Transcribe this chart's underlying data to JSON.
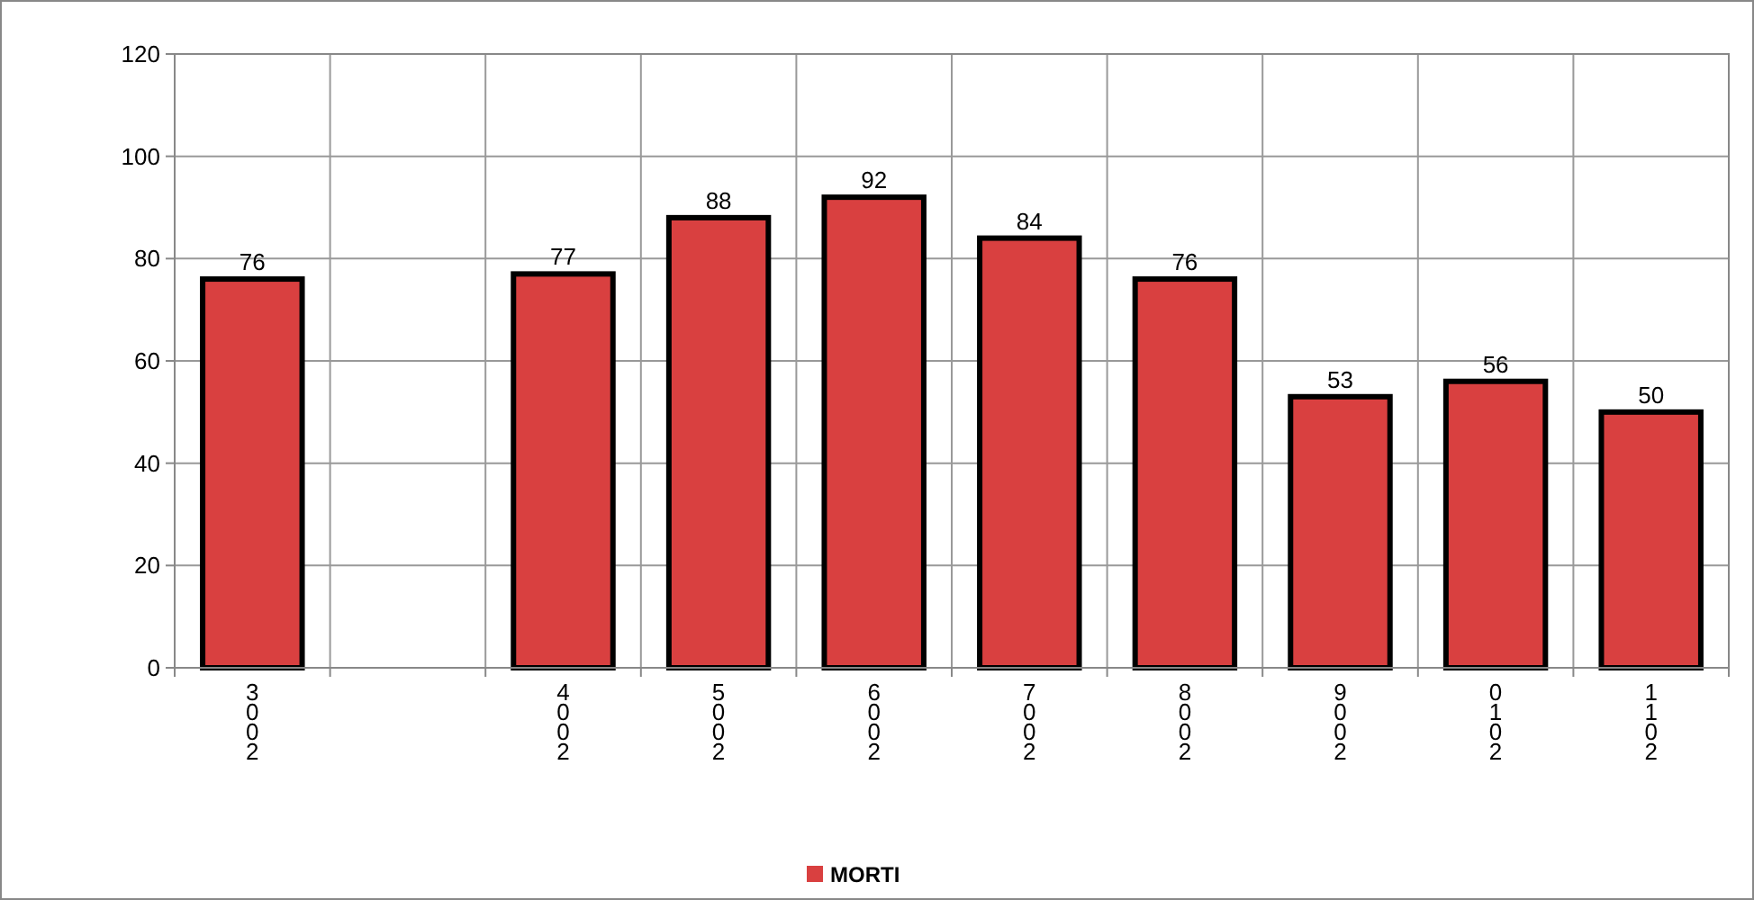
{
  "chart_data": {
    "type": "bar",
    "categories": [
      "2003",
      null,
      "2004",
      "2005",
      "2006",
      "2007",
      "2008",
      "2009",
      "2010",
      "2011"
    ],
    "series": [
      {
        "name": "MORTI",
        "color": "#d94040",
        "values": [
          76,
          null,
          77,
          88,
          92,
          84,
          76,
          53,
          56,
          50
        ]
      }
    ],
    "ylim": [
      0,
      120
    ],
    "yticks": [
      0,
      20,
      40,
      60,
      80,
      100,
      120
    ],
    "grid": true,
    "data_labels": true,
    "legend": "bottom"
  }
}
